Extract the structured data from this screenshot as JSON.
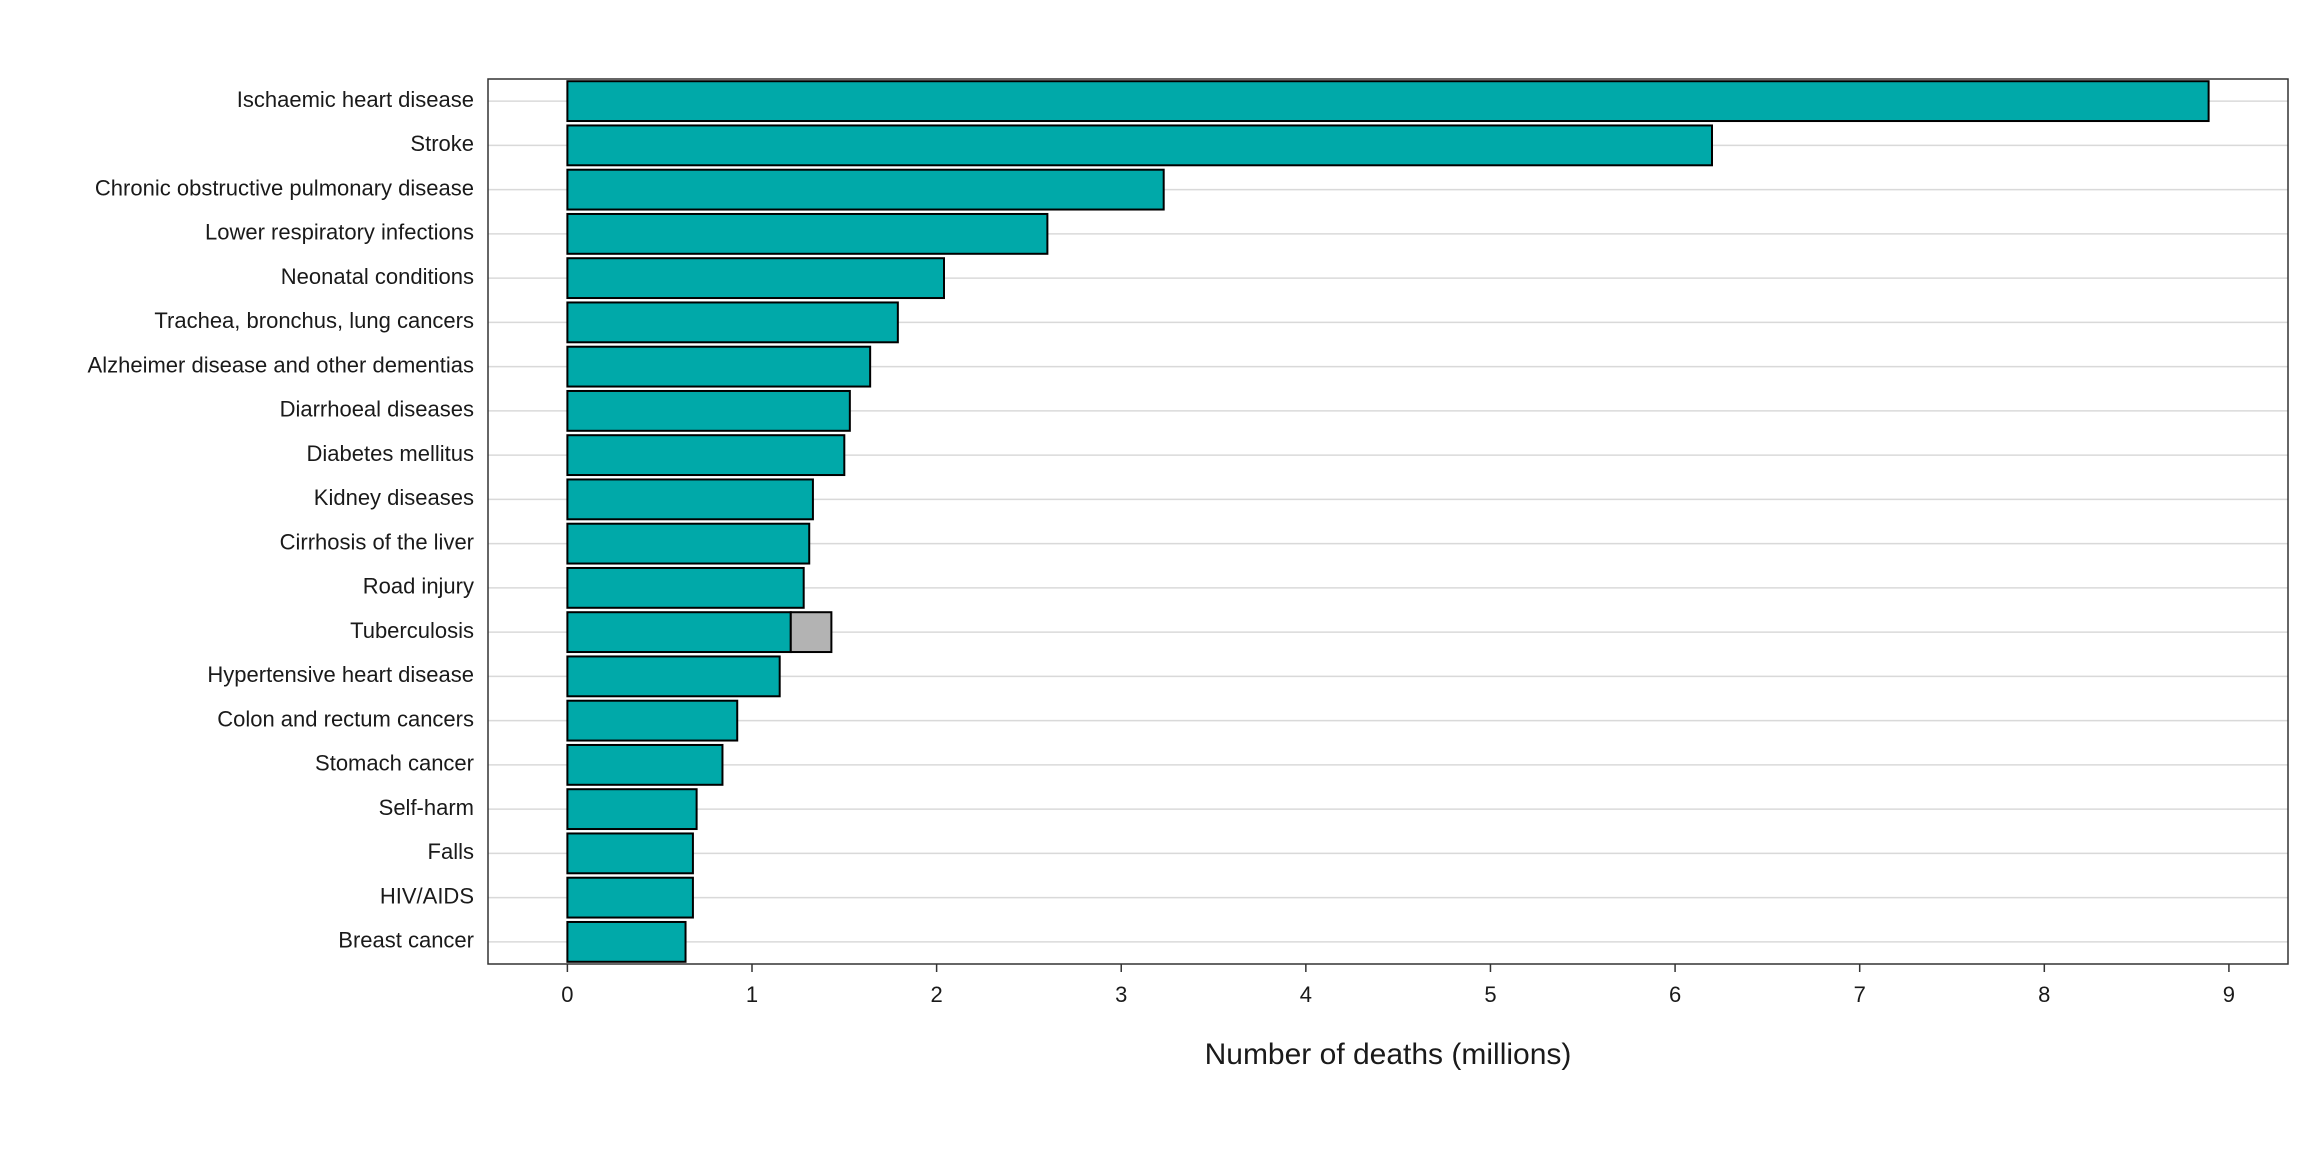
{
  "chart_data": {
    "type": "bar",
    "orientation": "horizontal",
    "stacked": true,
    "x_label": "Number of deaths (millions)",
    "categories": [
      "Ischaemic heart disease",
      "Stroke",
      "Chronic obstructive pulmonary disease",
      "Lower respiratory infections",
      "Neonatal conditions",
      "Trachea, bronchus, lung cancers",
      "Alzheimer disease and other dementias",
      "Diarrhoeal diseases",
      "Diabetes mellitus",
      "Kidney diseases",
      "Cirrhosis of the liver",
      "Road injury",
      "Tuberculosis",
      "Hypertensive heart disease",
      "Colon and rectum cancers",
      "Stomach cancer",
      "Self-harm",
      "Falls",
      "HIV/AIDS",
      "Breast cancer"
    ],
    "series": [
      {
        "color": "#00a9a9",
        "values": [
          8.89,
          6.2,
          3.23,
          2.6,
          2.04,
          1.79,
          1.64,
          1.53,
          1.5,
          1.33,
          1.31,
          1.28,
          1.21,
          1.15,
          0.92,
          0.84,
          0.7,
          0.68,
          0.68,
          0.64
        ]
      },
      {
        "color": "#b3b3b3",
        "values": [
          null,
          null,
          null,
          null,
          null,
          null,
          null,
          null,
          null,
          null,
          null,
          null,
          0.22,
          null,
          null,
          null,
          null,
          null,
          null,
          null
        ]
      }
    ],
    "xlim": [
      -0.43,
      9.32
    ],
    "xticks": [
      0,
      1,
      2,
      3,
      4,
      5,
      6,
      7,
      8,
      9
    ],
    "grid": true
  }
}
